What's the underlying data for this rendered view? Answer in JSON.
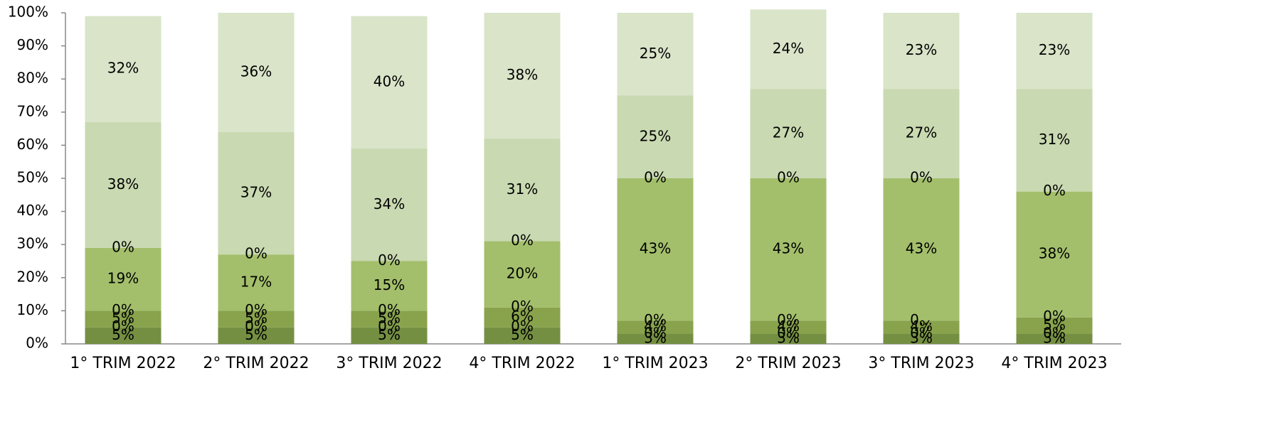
{
  "chart_data": {
    "type": "stacked_bar",
    "categories": [
      "1° TRIM 2022",
      "2° TRIM 2022",
      "3° TRIM 2022",
      "4° TRIM 2022",
      "1° TRIM 2023",
      "2° TRIM 2023",
      "3° TRIM 2023",
      "4° TRIM 2023"
    ],
    "series": [
      {
        "color": "#748f42",
        "values": [
          5,
          5,
          5,
          5,
          3,
          3,
          3,
          3
        ],
        "value_labels": [
          "5%",
          "5%",
          "5%",
          "5%",
          "3%",
          "3%",
          "3%",
          "3%"
        ]
      },
      {
        "color": "#7f9a46",
        "values": [
          0,
          0,
          0,
          0,
          0,
          0,
          0,
          0
        ],
        "value_labels": [
          "0%",
          "0%",
          "0%",
          "0%",
          "0%",
          "0%",
          "0%",
          "0%"
        ]
      },
      {
        "color": "#88a34c",
        "values": [
          5,
          5,
          5,
          6,
          4,
          4,
          4,
          5
        ],
        "value_labels": [
          "5%",
          "5%",
          "5%",
          "6%",
          "4%",
          "4%",
          "4%",
          "5%"
        ]
      },
      {
        "color": "#94b05a",
        "values": [
          0,
          0,
          0,
          0,
          0,
          0,
          0,
          0
        ],
        "value_labels": [
          "0%",
          "0%",
          "0%",
          "0%",
          "0%",
          "0%",
          "0...",
          "0%"
        ]
      },
      {
        "color": "#a3bf6b",
        "values": [
          19,
          17,
          15,
          20,
          43,
          43,
          43,
          38
        ],
        "value_labels": [
          "19%",
          "17%",
          "15%",
          "20%",
          "43%",
          "43%",
          "43%",
          "38%"
        ]
      },
      {
        "color": "#b6cd8d",
        "values": [
          0,
          0,
          0,
          0,
          0,
          0,
          0,
          0
        ],
        "value_labels": [
          "0%",
          "0%",
          "0%",
          "0%",
          "0%",
          "0%",
          "0%",
          "0%"
        ]
      },
      {
        "color": "#c9d9b1",
        "values": [
          38,
          37,
          34,
          31,
          25,
          27,
          27,
          31
        ],
        "value_labels": [
          "38%",
          "37%",
          "34%",
          "31%",
          "25%",
          "27%",
          "27%",
          "31%"
        ]
      },
      {
        "color": "#d9e4c9",
        "values": [
          32,
          36,
          40,
          38,
          25,
          24,
          23,
          23
        ],
        "value_labels": [
          "32%",
          "36%",
          "40%",
          "38%",
          "25%",
          "24%",
          "23%",
          "23%"
        ]
      }
    ],
    "ylim": [
      0,
      100
    ],
    "yticks": [
      {
        "value": 0,
        "label": "0%"
      },
      {
        "value": 10,
        "label": "10%"
      },
      {
        "value": 20,
        "label": "20%"
      },
      {
        "value": 30,
        "label": "30%"
      },
      {
        "value": 40,
        "label": "40%"
      },
      {
        "value": 50,
        "label": "50%"
      },
      {
        "value": 60,
        "label": "60%"
      },
      {
        "value": 70,
        "label": "70%"
      },
      {
        "value": 80,
        "label": "80%"
      },
      {
        "value": 90,
        "label": "90%"
      },
      {
        "value": 100,
        "label": "100%"
      }
    ],
    "grid": false
  }
}
